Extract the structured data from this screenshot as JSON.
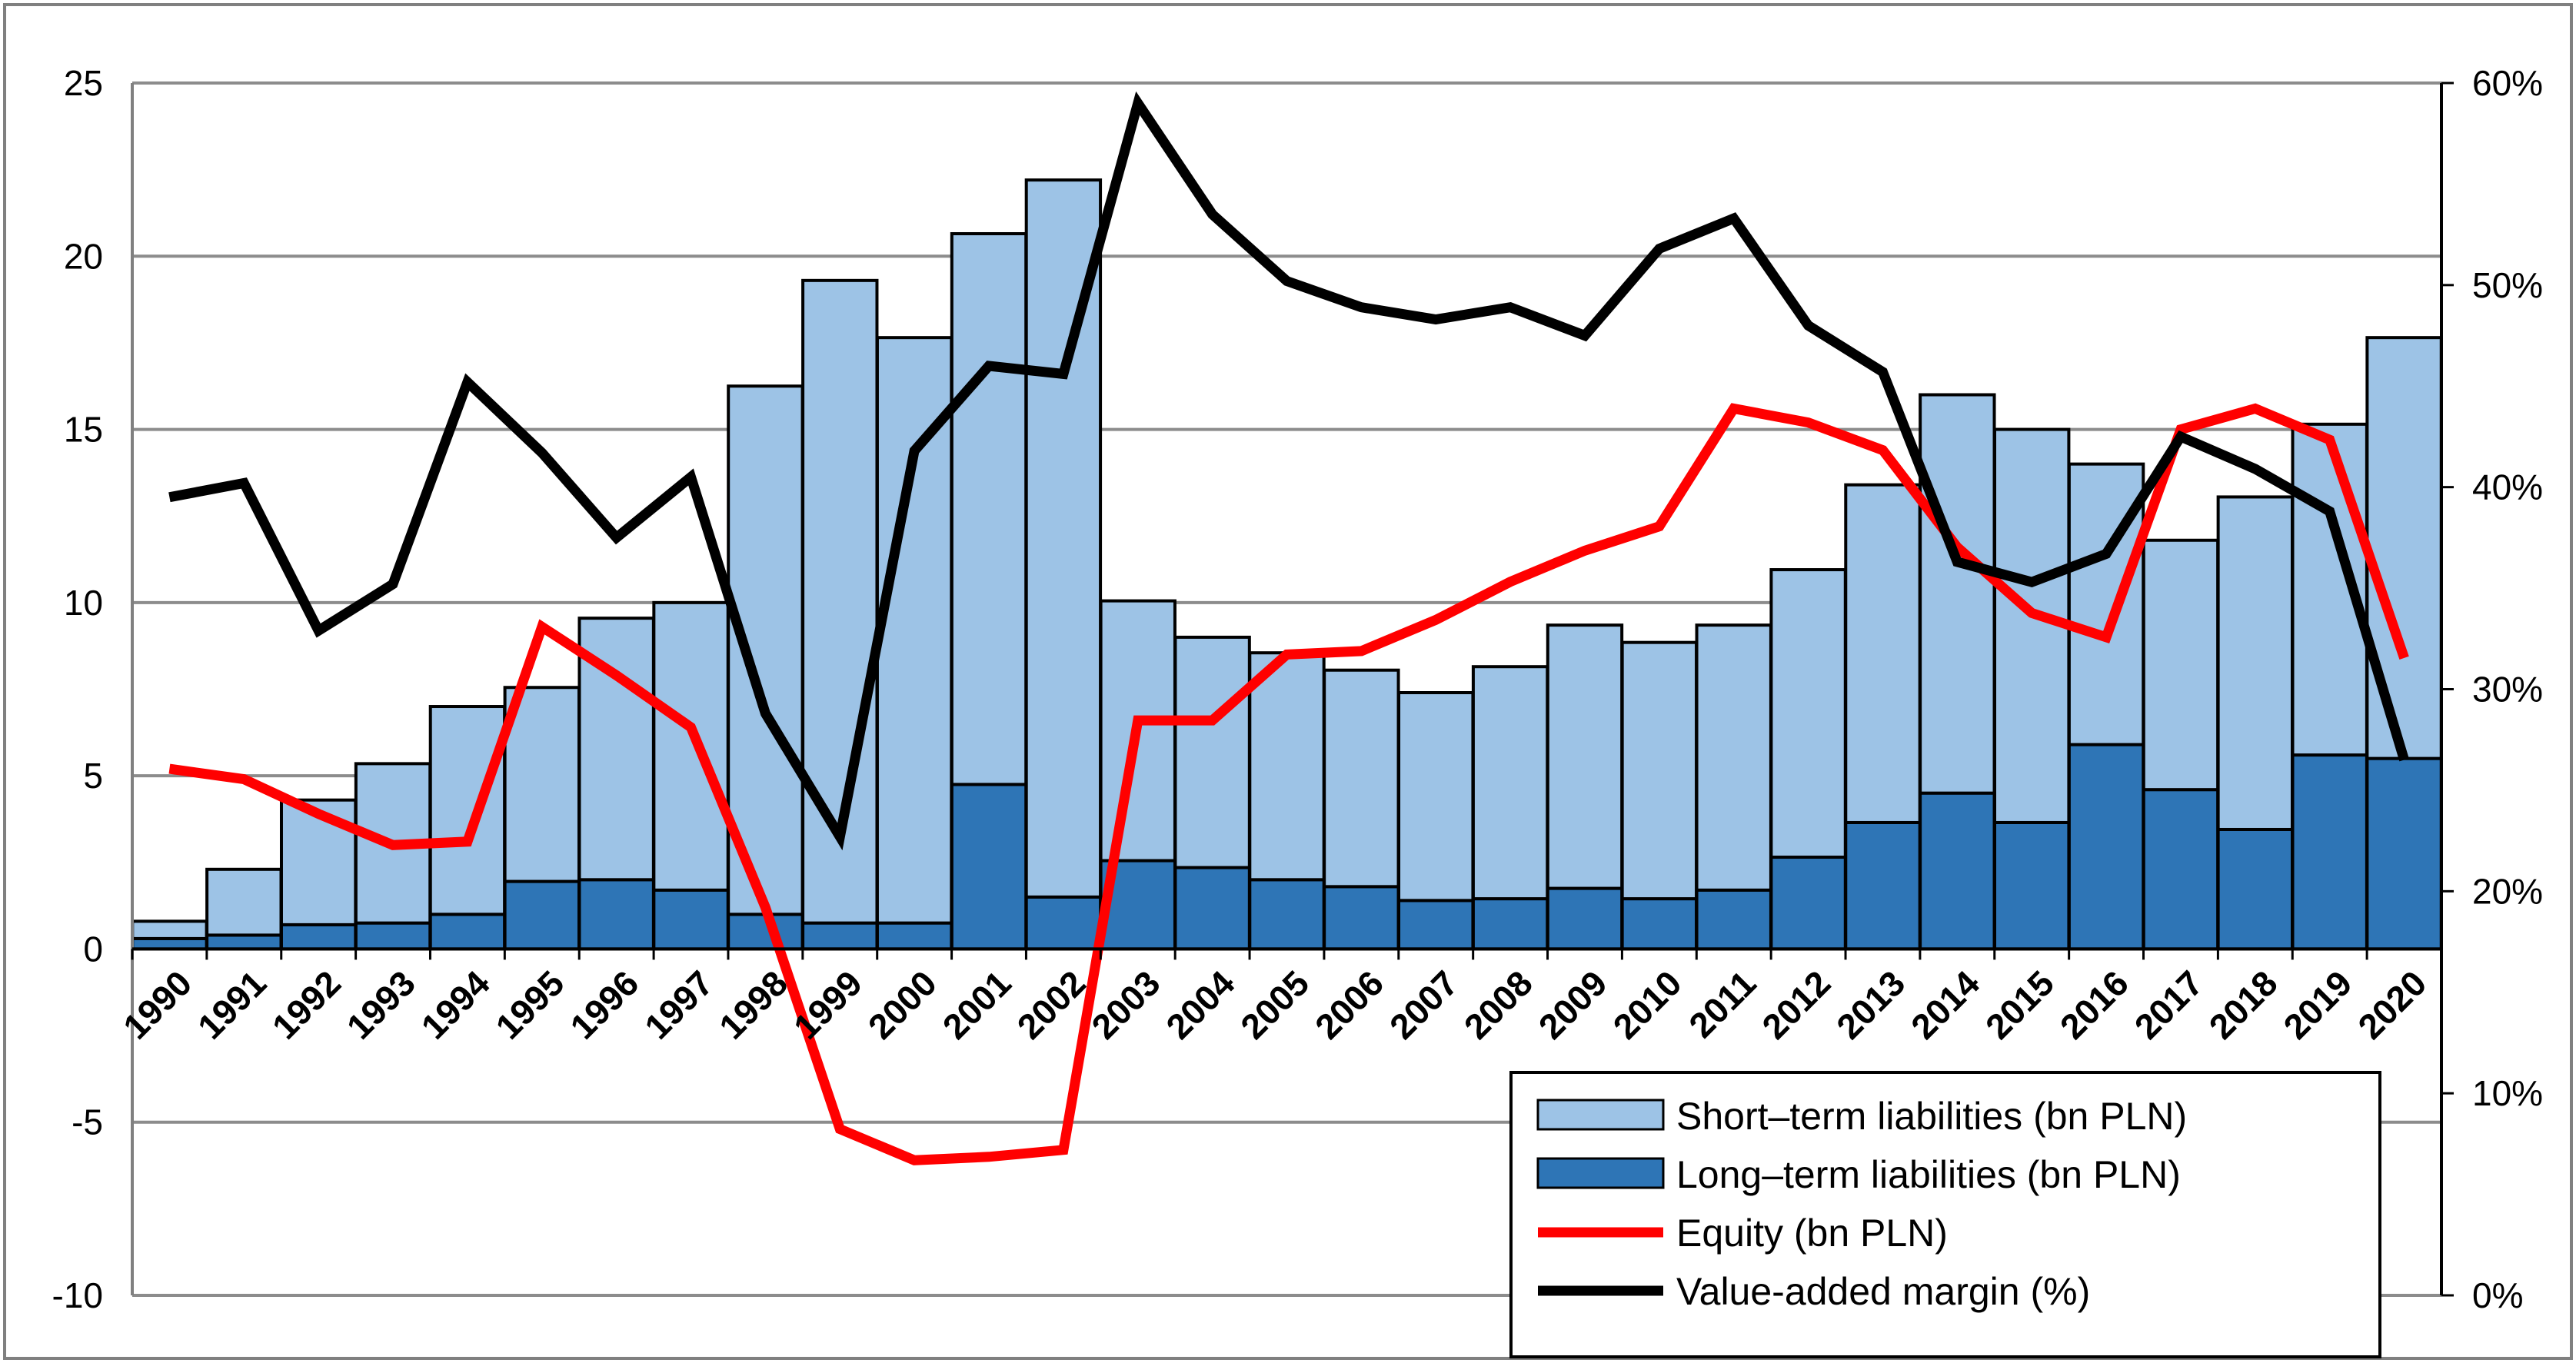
{
  "chart_data": {
    "type": "bar",
    "stacked": true,
    "categories": [
      "1990",
      "1991",
      "1992",
      "1993",
      "1994",
      "1995",
      "1996",
      "1997",
      "1998",
      "1999",
      "2000",
      "2001",
      "2002",
      "2003",
      "2004",
      "2005",
      "2006",
      "2007",
      "2008",
      "2009",
      "2010",
      "2011",
      "2012",
      "2013",
      "2014",
      "2015",
      "2016",
      "2017",
      "2018",
      "2019",
      "2020"
    ],
    "left_axis": {
      "ylim": [
        -10,
        25
      ],
      "ticks": [
        25,
        20,
        15,
        10,
        5,
        0,
        -5,
        -10
      ],
      "tick_labels": [
        "25",
        "20",
        "15",
        "10",
        "5",
        "0",
        "-5",
        "-10"
      ]
    },
    "right_axis": {
      "ylim": [
        0,
        60
      ],
      "ticks": [
        60,
        50,
        40,
        30,
        20,
        10,
        0
      ],
      "tick_labels": [
        "60%",
        "50%",
        "40%",
        "30%",
        "20%",
        "10%",
        "0%"
      ]
    },
    "bar_series": [
      {
        "name": "Long–term liabilities (bn PLN)",
        "color": "#2E75B6",
        "values": [
          0.3,
          0.4,
          0.7,
          0.75,
          1.0,
          1.95,
          2.0,
          1.7,
          1.0,
          0.75,
          0.75,
          4.75,
          1.5,
          2.55,
          2.35,
          2.0,
          1.8,
          1.4,
          1.45,
          1.75,
          1.45,
          1.7,
          2.65,
          3.65,
          4.5,
          3.65,
          5.9,
          4.6,
          3.45,
          5.6,
          5.5
        ]
      },
      {
        "name": "Short–term liabilities (bn PLN)",
        "color": "#9DC3E6",
        "values": [
          0.5,
          1.9,
          3.6,
          4.6,
          6.0,
          5.6,
          7.55,
          8.3,
          15.25,
          18.55,
          16.9,
          15.9,
          20.7,
          7.5,
          6.65,
          6.55,
          6.25,
          6.0,
          6.7,
          7.6,
          7.4,
          7.65,
          8.3,
          9.75,
          11.5,
          11.35,
          8.1,
          7.2,
          9.6,
          9.55,
          12.15
        ]
      }
    ],
    "line_series": [
      {
        "name": "Equity (bn PLN)",
        "color": "#FF0000",
        "axis": "left",
        "values": [
          5.2,
          4.9,
          3.9,
          3.0,
          3.1,
          9.3,
          7.9,
          6.4,
          1.2,
          -5.2,
          -6.1,
          -6.0,
          -5.8,
          6.6,
          6.6,
          8.5,
          8.6,
          9.5,
          10.6,
          11.5,
          12.2,
          15.6,
          15.2,
          14.4,
          11.6,
          9.7,
          9.0,
          15.0,
          15.6,
          14.7,
          8.4
        ]
      },
      {
        "name": "Value-added margin (%)",
        "color": "#000000",
        "axis": "right",
        "values": [
          39.5,
          40.2,
          32.9,
          35.2,
          45.2,
          41.7,
          37.5,
          40.5,
          28.8,
          22.7,
          41.8,
          46.0,
          45.6,
          59.0,
          53.5,
          50.2,
          48.9,
          48.3,
          48.9,
          47.5,
          51.8,
          53.3,
          48.0,
          45.7,
          36.3,
          35.3,
          36.7,
          42.5,
          40.9,
          38.8,
          26.5
        ]
      }
    ],
    "legend": {
      "position": "bottom-right",
      "entries": [
        "Short–term liabilities (bn PLN)",
        "Long–term liabilities (bn PLN)",
        "Equity (bn PLN)",
        "Value-added margin (%)"
      ]
    },
    "grid": true,
    "title": "",
    "xlabel": "",
    "ylabel": ""
  }
}
